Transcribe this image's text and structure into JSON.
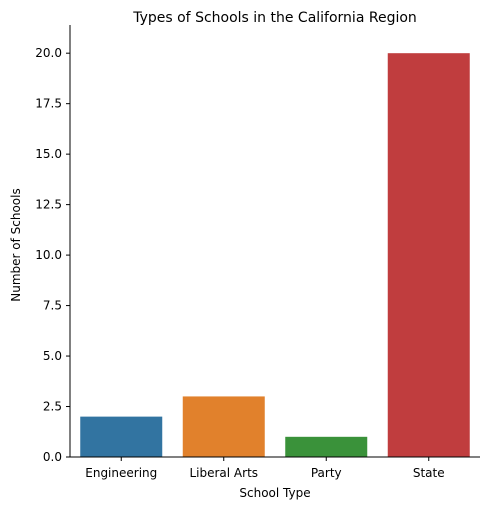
{
  "chart_data": {
    "type": "bar",
    "title": "Types of Schools in the California Region",
    "xlabel": "School Type",
    "ylabel": "Number of Schools",
    "categories": [
      "Engineering",
      "Liberal Arts",
      "Party",
      "State"
    ],
    "values": [
      2,
      3,
      1,
      20
    ],
    "colors": [
      "#3274a1",
      "#e1812c",
      "#3a923a",
      "#c03d3e"
    ],
    "ylim": [
      0,
      21
    ],
    "yticks": [
      0.0,
      2.5,
      5.0,
      7.5,
      10.0,
      12.5,
      15.0,
      17.5,
      20.0
    ],
    "ytick_labels": [
      "0.0",
      "2.5",
      "5.0",
      "7.5",
      "10.0",
      "12.5",
      "15.0",
      "17.5",
      "20.0"
    ],
    "grid": false,
    "legend": "none"
  }
}
